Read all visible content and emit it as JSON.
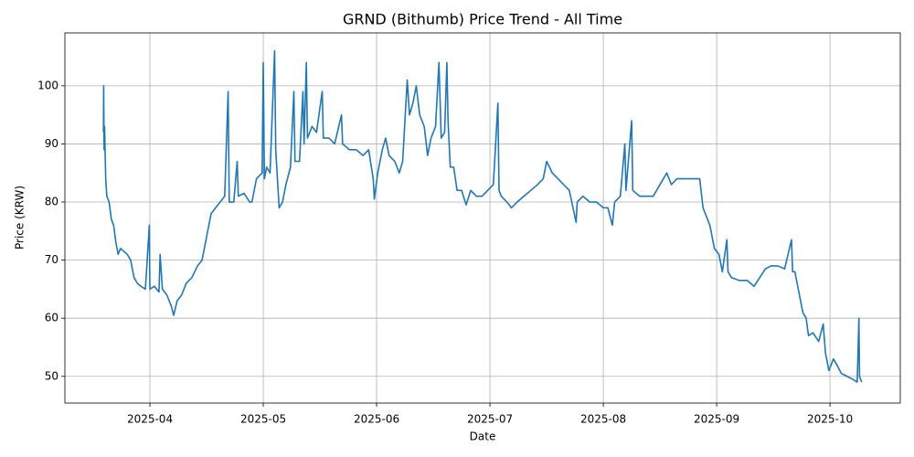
{
  "chart_data": {
    "type": "line",
    "title": "GRND (Bithumb) Price Trend - All Time",
    "xlabel": "Date",
    "ylabel": "Price (KRW)",
    "grid": true,
    "xlim": [
      3.25,
      10.62
    ],
    "ylim": [
      45.4,
      109.1
    ],
    "yticks": [
      50,
      60,
      70,
      80,
      90,
      100
    ],
    "xticks": [
      {
        "value": 4,
        "label": "2025-04"
      },
      {
        "value": 5,
        "label": "2025-05"
      },
      {
        "value": 6,
        "label": "2025-06"
      },
      {
        "value": 7,
        "label": "2025-07"
      },
      {
        "value": 8,
        "label": "2025-08"
      },
      {
        "value": 9,
        "label": "2025-09"
      },
      {
        "value": 10,
        "label": "2025-10"
      }
    ],
    "x": [
      3.59,
      3.592,
      3.596,
      3.6,
      3.61,
      3.62,
      3.64,
      3.66,
      3.68,
      3.7,
      3.72,
      3.74,
      3.77,
      3.8,
      3.83,
      3.86,
      3.89,
      3.92,
      3.96,
      3.995,
      4.0,
      4.04,
      4.08,
      4.09,
      4.11,
      4.15,
      4.19,
      4.21,
      4.24,
      4.28,
      4.32,
      4.37,
      4.42,
      4.46,
      4.5,
      4.54,
      4.58,
      4.62,
      4.66,
      4.69,
      4.7,
      4.74,
      4.77,
      4.78,
      4.83,
      4.88,
      4.9,
      4.94,
      4.99,
      5.0,
      5.01,
      5.03,
      5.06,
      5.1,
      5.11,
      5.14,
      5.17,
      5.2,
      5.24,
      5.27,
      5.28,
      5.32,
      5.35,
      5.36,
      5.38,
      5.39,
      5.43,
      5.47,
      5.52,
      5.53,
      5.58,
      5.63,
      5.69,
      5.7,
      5.76,
      5.82,
      5.88,
      5.93,
      5.97,
      5.98,
      6.01,
      6.05,
      6.08,
      6.11,
      6.16,
      6.2,
      6.23,
      6.27,
      6.29,
      6.32,
      6.35,
      6.38,
      6.42,
      6.45,
      6.48,
      6.52,
      6.55,
      6.57,
      6.6,
      6.62,
      6.63,
      6.65,
      6.68,
      6.71,
      6.75,
      6.79,
      6.83,
      6.88,
      6.93,
      6.98,
      7.03,
      7.07,
      7.08,
      7.1,
      7.15,
      7.19,
      7.24,
      7.3,
      7.36,
      7.42,
      7.47,
      7.5,
      7.55,
      7.6,
      7.65,
      7.7,
      7.76,
      7.77,
      7.82,
      7.88,
      7.94,
      8.0,
      8.04,
      8.08,
      8.1,
      8.15,
      8.19,
      8.2,
      8.25,
      8.26,
      8.32,
      8.38,
      8.44,
      8.5,
      8.56,
      8.6,
      8.65,
      8.7,
      8.75,
      8.8,
      8.85,
      8.88,
      8.9,
      8.94,
      8.98,
      9.02,
      9.05,
      9.09,
      9.1,
      9.13,
      9.2,
      9.27,
      9.33,
      9.38,
      9.43,
      9.48,
      9.54,
      9.6,
      9.66,
      9.67,
      9.69,
      9.72,
      9.76,
      9.79,
      9.81,
      9.85,
      9.9,
      9.94,
      9.96,
      9.99,
      10.03,
      10.06,
      10.1,
      10.15,
      10.2,
      10.24,
      10.255,
      10.26,
      10.28
    ],
    "series": [
      {
        "name": "Price",
        "color": "#1f77b4",
        "values": [
          92,
          100,
          89,
          93,
          84,
          81,
          80,
          77,
          76,
          73,
          71,
          72,
          71.5,
          71,
          70,
          67,
          66,
          65.5,
          65,
          76,
          65,
          65.5,
          64.5,
          71,
          65,
          64,
          62,
          60.5,
          63,
          64,
          66,
          67,
          69,
          70,
          74,
          78,
          79,
          80,
          81,
          99,
          80,
          80,
          87,
          81,
          81.5,
          80,
          80,
          84,
          85,
          104,
          84,
          86,
          85,
          106,
          89,
          79,
          80,
          83,
          86,
          99,
          87,
          87,
          99,
          90,
          104,
          91,
          93,
          92,
          99,
          91,
          91,
          90,
          95,
          90,
          89,
          89,
          88,
          89,
          84,
          80.5,
          85,
          89,
          91,
          88,
          87,
          85,
          87,
          101,
          95,
          97,
          100,
          95,
          93,
          88,
          91,
          93,
          104,
          91,
          92,
          104,
          94,
          86,
          86,
          82,
          82,
          79.5,
          82,
          81,
          81,
          82,
          83,
          97,
          82,
          81,
          80,
          79,
          80,
          81,
          82,
          83,
          84,
          87,
          85,
          84,
          83,
          82,
          76.5,
          80,
          81,
          80,
          80,
          79,
          79,
          76,
          80,
          81,
          90,
          82,
          94,
          82,
          81,
          81,
          81,
          83,
          85,
          83,
          84,
          84,
          84,
          84,
          84,
          79,
          78,
          76,
          72,
          71,
          68,
          73.5,
          68,
          67,
          66.5,
          66.5,
          65.5,
          67,
          68.5,
          69,
          69,
          68.5,
          73.5,
          68,
          68,
          65,
          61,
          60,
          57,
          57.5,
          56,
          59,
          54,
          51,
          53,
          52,
          50.5,
          50,
          49.5,
          49,
          60,
          50,
          49
        ]
      }
    ]
  }
}
